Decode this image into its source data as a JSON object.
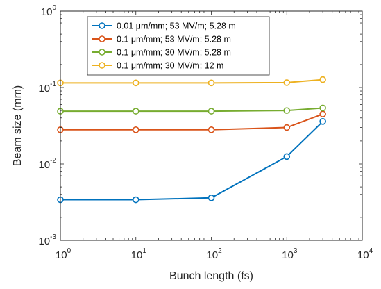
{
  "chart_data": {
    "type": "line",
    "title": "",
    "xlabel": "Bunch length (fs)",
    "ylabel": "Beam size (mm)",
    "xscale": "log",
    "yscale": "log",
    "xlim": [
      1,
      10000
    ],
    "ylim": [
      0.001,
      1
    ],
    "grid": false,
    "legend_position": "top-left",
    "x_ticks": [
      {
        "value": 1,
        "base": "10",
        "exp": "0"
      },
      {
        "value": 10,
        "base": "10",
        "exp": "1"
      },
      {
        "value": 100,
        "base": "10",
        "exp": "2"
      },
      {
        "value": 1000,
        "base": "10",
        "exp": "3"
      },
      {
        "value": 10000,
        "base": "10",
        "exp": "4"
      }
    ],
    "y_ticks": [
      {
        "value": 0.001,
        "base": "10",
        "exp": "-3"
      },
      {
        "value": 0.01,
        "base": "10",
        "exp": "-2"
      },
      {
        "value": 0.1,
        "base": "10",
        "exp": "-1"
      },
      {
        "value": 1,
        "base": "10",
        "exp": "0"
      }
    ],
    "x": [
      1,
      10,
      100,
      1000,
      3000
    ],
    "series": [
      {
        "name": "0.01 μm/mm; 53 MV/m; 5.28 m",
        "color": "#0072BD",
        "values": [
          0.0034,
          0.0034,
          0.0036,
          0.0125,
          0.036
        ]
      },
      {
        "name": "0.1 μm/mm; 53 MV/m; 5.28 m",
        "color": "#D95319",
        "values": [
          0.028,
          0.028,
          0.028,
          0.03,
          0.045
        ]
      },
      {
        "name": "0.1 μm/mm; 30 MV/m; 5.28 m",
        "color": "#77AC30",
        "values": [
          0.049,
          0.049,
          0.049,
          0.05,
          0.054
        ]
      },
      {
        "name": "0.1 μm/mm; 30 MV/m; 12 m",
        "color": "#EDB120",
        "values": [
          0.115,
          0.115,
          0.115,
          0.116,
          0.127
        ]
      }
    ]
  }
}
